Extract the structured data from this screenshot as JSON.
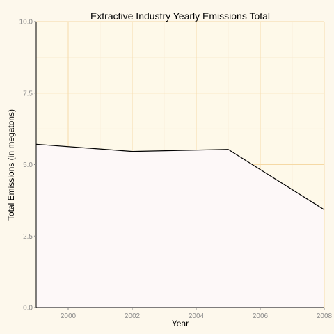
{
  "chart_data": {
    "type": "area",
    "title": "Extractive Industry Yearly Emissions Total",
    "xlabel": "Year",
    "ylabel": "Total Emissions (in megatons)",
    "x": [
      1999,
      2002,
      2005,
      2008
    ],
    "series": [
      {
        "values": [
          5.71,
          5.46,
          5.53,
          3.42
        ]
      }
    ],
    "xlim": [
      1999,
      2008
    ],
    "ylim": [
      0,
      10
    ],
    "xticks": [
      2000,
      2002,
      2004,
      2006,
      2008
    ],
    "xtick_labels": [
      "2000",
      "2002",
      "2004",
      "2006",
      "2008"
    ],
    "yticks": [
      0,
      2.5,
      5,
      7.5,
      10
    ],
    "ytick_labels": [
      "0.0",
      "2.5",
      "5.0",
      "7.5",
      "10.0"
    ],
    "grid": true,
    "colors": {
      "page_background": "#fdf8ec",
      "panel_background": "#fef9e9",
      "grid_major": "#f5d9a5",
      "grid_minor": "#f8ead0",
      "area_fill": "#fdf8f8",
      "line": "#000000",
      "axis": "#000000",
      "tick_text": "#8a8a8a"
    }
  }
}
